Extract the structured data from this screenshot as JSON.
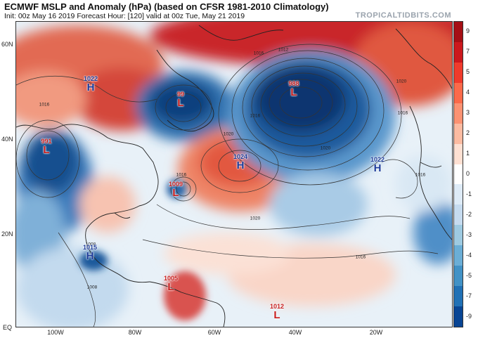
{
  "header": {
    "title": "ECMWF MSLP and Anomaly (hPa) (based on CFSR 1981-2010 Climatology)",
    "subtitle": "Init: 00z May 16 2019   Forecast Hour: [120]   valid at 00z Tue, May 21 2019",
    "brand": "TROPICALTIDBITS.COM"
  },
  "axes": {
    "latitudes": [
      "60N",
      "40N",
      "20N",
      "EQ"
    ],
    "longitudes": [
      "100W",
      "80W",
      "60W",
      "40W",
      "20W"
    ]
  },
  "colorbar": {
    "ticks": [
      "9",
      "7",
      "5",
      "4",
      "3",
      "2",
      "1",
      "0",
      "-1",
      "-2",
      "-3",
      "-4",
      "-5",
      "-7",
      "-9"
    ],
    "colors": [
      "#a50f15",
      "#cb181d",
      "#ef3b2c",
      "#fb6a4a",
      "#fc9272",
      "#fcbba1",
      "#fee0d2",
      "#ffffff",
      "#deebf7",
      "#c6dbef",
      "#9ecae1",
      "#6baed6",
      "#4292c6",
      "#2171b5",
      "#084594"
    ]
  },
  "pressure_systems": [
    {
      "type": "H",
      "value": "1022",
      "color": "#1e3c9a"
    },
    {
      "type": "L",
      "value": "99",
      "color": "#c81e1e"
    },
    {
      "type": "L",
      "value": "991",
      "color": "#c81e1e"
    },
    {
      "type": "L",
      "value": "1009",
      "color": "#c81e1e"
    },
    {
      "type": "H",
      "value": "1024",
      "color": "#1e3c9a"
    },
    {
      "type": "L",
      "value": "988",
      "color": "#c81e1e"
    },
    {
      "type": "H",
      "value": "1022",
      "color": "#1e3c9a"
    },
    {
      "type": "H",
      "value": "1015",
      "color": "#1e3c9a"
    },
    {
      "type": "L",
      "value": "1005",
      "color": "#c81e1e"
    },
    {
      "type": "L",
      "value": "1012",
      "color": "#c81e1e"
    }
  ],
  "isobar_labels": [
    "1016",
    "1012",
    "1016",
    "1020",
    "1016",
    "1020",
    "1016",
    "1020",
    "1016",
    "1008",
    "1008",
    "1016",
    "1016",
    "1020"
  ]
}
